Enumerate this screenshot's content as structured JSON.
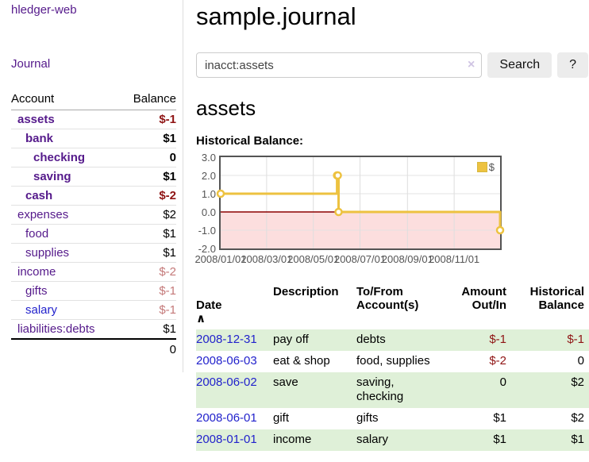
{
  "app": {
    "brand": "hledger-web",
    "journal_link": "Journal"
  },
  "main": {
    "title": "sample.journal",
    "account_heading": "assets",
    "chart_label": "Historical Balance:"
  },
  "search": {
    "value": "inacct:assets",
    "clear_icon": "×",
    "search_button": "Search",
    "help_button": "?"
  },
  "sidebar": {
    "account_header": "Account",
    "balance_header": "Balance",
    "rows": [
      {
        "name": "assets",
        "balance": "$-1",
        "name_tone": "visited",
        "bal_tone": "neg-strong"
      },
      {
        "name": "bank",
        "balance": "$1",
        "name_tone": "visited",
        "bal_tone": ""
      },
      {
        "name": "checking",
        "balance": "0",
        "name_tone": "visited",
        "bal_tone": ""
      },
      {
        "name": "saving",
        "balance": "$1",
        "name_tone": "visited",
        "bal_tone": ""
      },
      {
        "name": "cash",
        "balance": "$-2",
        "name_tone": "visited",
        "bal_tone": "neg-strong"
      },
      {
        "name": "expenses",
        "balance": "$2",
        "name_tone": "visited",
        "bal_tone": ""
      },
      {
        "name": "food",
        "balance": "$1",
        "name_tone": "visited",
        "bal_tone": ""
      },
      {
        "name": "supplies",
        "balance": "$1",
        "name_tone": "visited",
        "bal_tone": ""
      },
      {
        "name": "income",
        "balance": "$-2",
        "name_tone": "visited",
        "bal_tone": "neg-soft"
      },
      {
        "name": "gifts",
        "balance": "$-1",
        "name_tone": "visited",
        "bal_tone": "neg-soft"
      },
      {
        "name": "salary",
        "balance": "$-1",
        "name_tone": "unvisited",
        "bal_tone": "neg-soft"
      },
      {
        "name": "liabilities:debts",
        "balance": "$1",
        "name_tone": "visited",
        "bal_tone": ""
      }
    ],
    "total": "0"
  },
  "chart_data": {
    "type": "line",
    "step": true,
    "title": "Historical Balance:",
    "series": [
      {
        "name": "$",
        "color": "#edc240",
        "points": [
          [
            "2008/01/01",
            1
          ],
          [
            "2008/06/01",
            2
          ],
          [
            "2008/06/02",
            2
          ],
          [
            "2008/06/03",
            0
          ],
          [
            "2008/12/31",
            -1
          ]
        ]
      }
    ],
    "x_domain": [
      "2008/01/01",
      "2008/12/31"
    ],
    "x_ticks": [
      "2008/01/01",
      "2008/03/01",
      "2008/05/01",
      "2008/07/01",
      "2008/09/01",
      "2008/11/01"
    ],
    "y_ticks": [
      {
        "label": "3.0",
        "value": 3
      },
      {
        "label": "2.0",
        "value": 2
      },
      {
        "label": "1.0",
        "value": 1
      },
      {
        "label": "0.0",
        "value": 0
      },
      {
        "label": "-1.0",
        "value": -1
      },
      {
        "label": "-2.0",
        "value": -2
      }
    ],
    "ylim": [
      -2,
      3
    ],
    "grid": true,
    "legend": {
      "label": "$",
      "position": "top-right"
    },
    "negative_region": {
      "below": 0,
      "color": "#fcdede"
    },
    "zero_line_color": "#8b0000"
  },
  "register": {
    "headers": {
      "date": "Date",
      "sort_icon": "∧",
      "description": "Description",
      "accounts": "To/From\nAccount(s)",
      "amount": "Amount\nOut/In",
      "balance": "Historical\nBalance"
    },
    "rows": [
      {
        "date": "2008-12-31",
        "description": "pay off",
        "accounts": "debts",
        "amount": "$-1",
        "amount_tone": "neg",
        "balance": "$-1",
        "balance_tone": "neg"
      },
      {
        "date": "2008-06-03",
        "description": "eat & shop",
        "accounts": "food, supplies",
        "amount": "$-2",
        "amount_tone": "neg",
        "balance": "0",
        "balance_tone": ""
      },
      {
        "date": "2008-06-02",
        "description": "save",
        "accounts": "saving, checking",
        "amount": "0",
        "amount_tone": "",
        "balance": "$2",
        "balance_tone": ""
      },
      {
        "date": "2008-06-01",
        "description": "gift",
        "accounts": "gifts",
        "amount": "$1",
        "amount_tone": "",
        "balance": "$2",
        "balance_tone": ""
      },
      {
        "date": "2008-01-01",
        "description": "income",
        "accounts": "salary",
        "amount": "$1",
        "amount_tone": "",
        "balance": "$1",
        "balance_tone": ""
      }
    ]
  },
  "colors": {
    "accent_purple": "#551a8b",
    "link_blue": "#2222cc",
    "neg_strong": "#8f1414",
    "neg_soft": "#c47979",
    "row_green": "#dff0d8",
    "series_yellow": "#edc240",
    "chart_border": "#545454",
    "negative_fill": "#fcdede",
    "zero_line": "#8b0000"
  }
}
